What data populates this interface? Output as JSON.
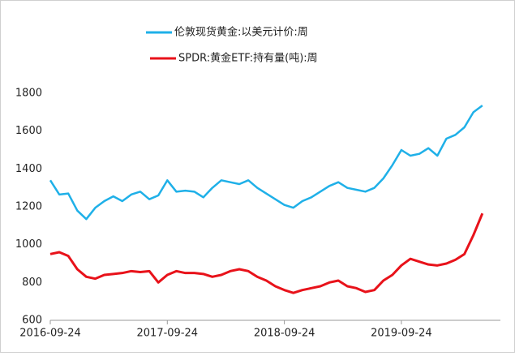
{
  "chart_data": {
    "type": "line",
    "categories": [
      "2016-09-24",
      null,
      null,
      null,
      null,
      null,
      null,
      null,
      null,
      null,
      null,
      null,
      null,
      "2017-09-24",
      null,
      null,
      null,
      null,
      null,
      null,
      null,
      null,
      null,
      null,
      null,
      null,
      "2018-09-24",
      null,
      null,
      null,
      null,
      null,
      null,
      null,
      null,
      null,
      null,
      null,
      null,
      "2019-09-24",
      null,
      null,
      null,
      null,
      null,
      null,
      null,
      null,
      null
    ],
    "series": [
      {
        "name": "伦敦现货黄金:以美元计价:周",
        "color": "#1fb0e8",
        "values": [
          1340,
          1265,
          1270,
          1180,
          1135,
          1195,
          1230,
          1255,
          1230,
          1265,
          1280,
          1240,
          1260,
          1340,
          1280,
          1285,
          1280,
          1250,
          1300,
          1340,
          1330,
          1320,
          1340,
          1300,
          1270,
          1240,
          1210,
          1195,
          1230,
          1250,
          1280,
          1310,
          1330,
          1300,
          1290,
          1280,
          1300,
          1350,
          1420,
          1500,
          1470,
          1480,
          1510,
          1470,
          1560,
          1580,
          1620,
          1700,
          1735
        ]
      },
      {
        "name": "SPDR:黄金ETF:持有量(吨):周",
        "color": "#e8121a",
        "values": [
          950,
          960,
          940,
          870,
          830,
          820,
          840,
          845,
          850,
          860,
          855,
          860,
          800,
          840,
          860,
          850,
          850,
          845,
          830,
          840,
          860,
          870,
          860,
          830,
          810,
          780,
          760,
          745,
          760,
          770,
          780,
          800,
          810,
          780,
          770,
          750,
          760,
          810,
          840,
          890,
          925,
          910,
          895,
          890,
          900,
          920,
          950,
          1050,
          1165
        ]
      }
    ],
    "ylim": [
      600,
      1800
    ],
    "yticks": [
      600,
      800,
      1000,
      1200,
      1400,
      1600,
      1800
    ],
    "legend": "top",
    "grid": false
  }
}
